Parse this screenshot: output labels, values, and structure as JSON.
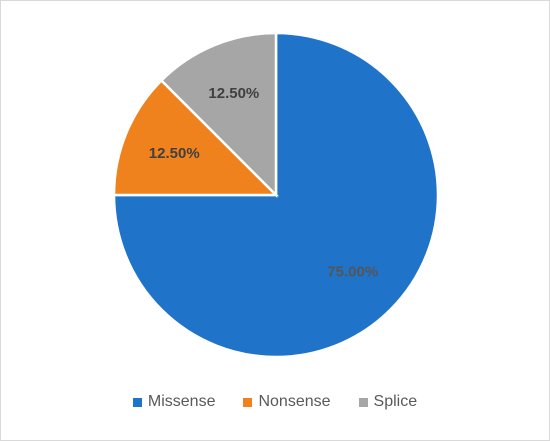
{
  "chart_data": {
    "type": "pie",
    "categories": [
      "Missense",
      "Nonsense",
      "Splice"
    ],
    "values": [
      75.0,
      12.5,
      12.5
    ],
    "data_labels": [
      "75.00%",
      "12.50%",
      "12.50%"
    ],
    "colors": [
      "#1f73c8",
      "#f0821e",
      "#a6a6a6"
    ],
    "label_colors": [
      "#555555",
      "#404040",
      "#404040"
    ],
    "legend_position": "bottom",
    "start_angle": "12 o'clock, clockwise"
  }
}
